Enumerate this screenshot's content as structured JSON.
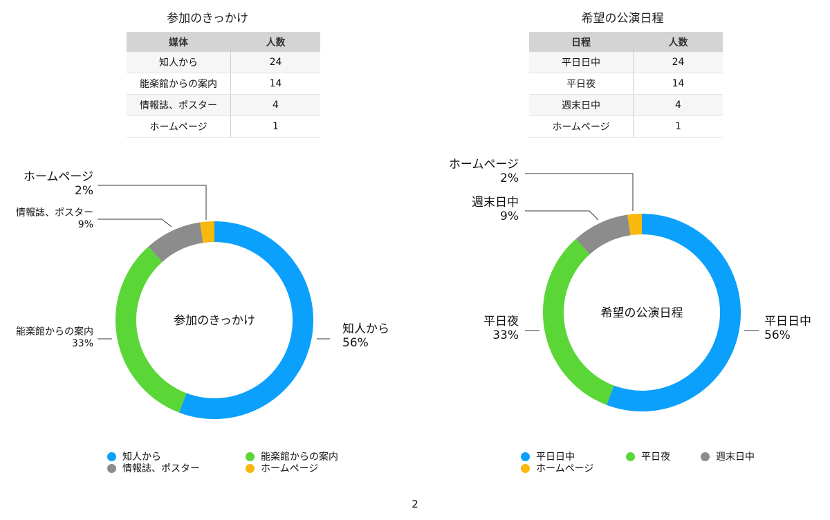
{
  "page_number": "2",
  "colors": {
    "blue": "#0ba0fb",
    "green": "#5bd637",
    "gray": "#8c8c8c",
    "orange": "#f9b80c"
  },
  "chart_data": [
    {
      "type": "pie",
      "title": "参加のきっかけ",
      "table_headers": [
        "媒体",
        "人数"
      ],
      "categories": [
        "知人から",
        "能楽館からの案内",
        "情報誌、ポスター",
        "ホームページ"
      ],
      "values": [
        24,
        14,
        4,
        1
      ],
      "percent_labels": [
        "56%",
        "33%",
        "9%",
        "2%"
      ],
      "legend": "bottom"
    },
    {
      "type": "pie",
      "title": "希望の公演日程",
      "table_headers": [
        "日程",
        "人数"
      ],
      "categories": [
        "平日日中",
        "平日夜",
        "週末日中",
        "ホームページ"
      ],
      "values": [
        24,
        14,
        4,
        1
      ],
      "percent_labels": [
        "56%",
        "33%",
        "9%",
        "2%"
      ],
      "legend": "bottom"
    }
  ]
}
